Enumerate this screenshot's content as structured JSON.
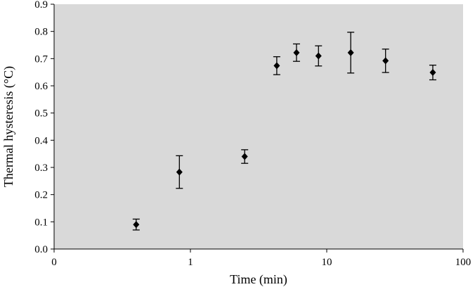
{
  "chart_data": {
    "type": "scatter",
    "title": "",
    "xlabel": "Time (min)",
    "ylabel": "Thermal hysteresis (°C)",
    "x_scale": "log",
    "xlim": [
      0.1,
      100
    ],
    "ylim": [
      0,
      0.9
    ],
    "x_ticks": [
      0.1,
      1,
      10,
      100
    ],
    "x_tick_labels": [
      "0",
      "1",
      "10",
      "100"
    ],
    "y_ticks": [
      0,
      0.1,
      0.2,
      0.3,
      0.4,
      0.5,
      0.6,
      0.7,
      0.8,
      0.9
    ],
    "y_tick_labels": [
      "0.0",
      "0.1",
      "0.2",
      "0.3",
      "0.4",
      "0.5",
      "0.6",
      "0.7",
      "0.8",
      "0.9"
    ],
    "grid": false,
    "legend": "none",
    "marker": "diamond",
    "plot_background": "#d9d9d9",
    "marker_color": "#000000",
    "series": [
      {
        "x": [
          0.4,
          0.83,
          2.5,
          4.3,
          6.0,
          8.7,
          15,
          27,
          60
        ],
        "y": [
          0.09,
          0.283,
          0.34,
          0.674,
          0.722,
          0.71,
          0.722,
          0.692,
          0.649
        ],
        "y_err": [
          0.02,
          0.06,
          0.025,
          0.033,
          0.032,
          0.037,
          0.075,
          0.043,
          0.027
        ]
      }
    ]
  }
}
